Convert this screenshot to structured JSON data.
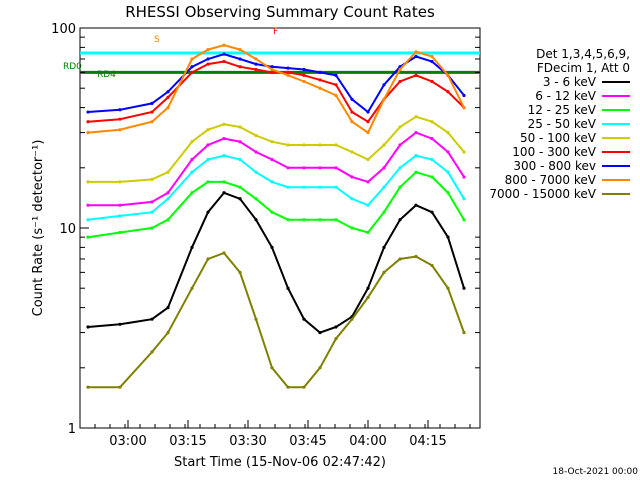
{
  "chart_data": {
    "type": "line",
    "title": "RHESSI Observing Summary Count Rates",
    "xlabel": "Start Time (15-Nov-06 02:47:42)",
    "ylabel": "Count Rate (s⁻¹ detector⁻¹)",
    "yscale": "log",
    "ylim": [
      1,
      100
    ],
    "xlim_minutes": [
      0,
      100
    ],
    "x_ticks": [
      "03:00",
      "03:15",
      "03:30",
      "03:45",
      "04:00",
      "04:15"
    ],
    "y_ticks": [
      "1",
      "10",
      "100"
    ],
    "legend_header": [
      "Det 1,3,4,5,6,9,",
      "FDecim 1, Att 0"
    ],
    "series": [
      {
        "name": "3 - 6 keV",
        "color": "#000000",
        "points": [
          [
            2,
            3.2
          ],
          [
            10,
            3.3
          ],
          [
            18,
            3.5
          ],
          [
            22,
            4
          ],
          [
            28,
            8
          ],
          [
            32,
            12
          ],
          [
            36,
            15
          ],
          [
            40,
            14
          ],
          [
            44,
            11
          ],
          [
            48,
            8
          ],
          [
            52,
            5
          ],
          [
            56,
            3.5
          ],
          [
            60,
            3
          ],
          [
            64,
            3.2
          ],
          [
            68,
            3.6
          ],
          [
            72,
            5
          ],
          [
            76,
            8
          ],
          [
            80,
            11
          ],
          [
            84,
            13
          ],
          [
            88,
            12
          ],
          [
            92,
            9
          ],
          [
            96,
            5
          ]
        ]
      },
      {
        "name": "6 - 12 keV",
        "color": "#ff00ff",
        "points": [
          [
            2,
            13
          ],
          [
            10,
            13
          ],
          [
            18,
            13.5
          ],
          [
            22,
            15
          ],
          [
            28,
            22
          ],
          [
            32,
            26
          ],
          [
            36,
            28
          ],
          [
            40,
            27
          ],
          [
            44,
            24
          ],
          [
            48,
            22
          ],
          [
            52,
            20
          ],
          [
            56,
            20
          ],
          [
            60,
            20
          ],
          [
            64,
            20
          ],
          [
            68,
            18
          ],
          [
            72,
            17
          ],
          [
            76,
            20
          ],
          [
            80,
            26
          ],
          [
            84,
            30
          ],
          [
            88,
            28
          ],
          [
            92,
            24
          ],
          [
            96,
            18
          ]
        ]
      },
      {
        "name": "12 - 25 keV",
        "color": "#00ff00",
        "points": [
          [
            2,
            9
          ],
          [
            10,
            9.5
          ],
          [
            18,
            10
          ],
          [
            22,
            11
          ],
          [
            28,
            15
          ],
          [
            32,
            17
          ],
          [
            36,
            17
          ],
          [
            40,
            16
          ],
          [
            44,
            14
          ],
          [
            48,
            12
          ],
          [
            52,
            11
          ],
          [
            56,
            11
          ],
          [
            60,
            11
          ],
          [
            64,
            11
          ],
          [
            68,
            10
          ],
          [
            72,
            9.5
          ],
          [
            76,
            12
          ],
          [
            80,
            16
          ],
          [
            84,
            19
          ],
          [
            88,
            18
          ],
          [
            92,
            15
          ],
          [
            96,
            11
          ]
        ]
      },
      {
        "name": "25 - 50 keV",
        "color": "#00ffff",
        "points": [
          [
            2,
            11
          ],
          [
            10,
            11.5
          ],
          [
            18,
            12
          ],
          [
            22,
            14
          ],
          [
            28,
            19
          ],
          [
            32,
            22
          ],
          [
            36,
            23
          ],
          [
            40,
            22
          ],
          [
            44,
            19
          ],
          [
            48,
            17
          ],
          [
            52,
            16
          ],
          [
            56,
            16
          ],
          [
            60,
            16
          ],
          [
            64,
            16
          ],
          [
            68,
            14
          ],
          [
            72,
            13
          ],
          [
            76,
            16
          ],
          [
            80,
            20
          ],
          [
            84,
            23
          ],
          [
            88,
            22
          ],
          [
            92,
            19
          ],
          [
            96,
            14
          ]
        ]
      },
      {
        "name": "50 - 100 keV",
        "color": "#cccc00",
        "points": [
          [
            2,
            17
          ],
          [
            10,
            17
          ],
          [
            18,
            17.5
          ],
          [
            22,
            19
          ],
          [
            28,
            27
          ],
          [
            32,
            31
          ],
          [
            36,
            33
          ],
          [
            40,
            32
          ],
          [
            44,
            29
          ],
          [
            48,
            27
          ],
          [
            52,
            26
          ],
          [
            56,
            26
          ],
          [
            60,
            26
          ],
          [
            64,
            26
          ],
          [
            68,
            24
          ],
          [
            72,
            22
          ],
          [
            76,
            26
          ],
          [
            80,
            32
          ],
          [
            84,
            36
          ],
          [
            88,
            34
          ],
          [
            92,
            30
          ],
          [
            96,
            24
          ]
        ]
      },
      {
        "name": "100 - 300 keV",
        "color": "#ff0000",
        "points": [
          [
            2,
            34
          ],
          [
            10,
            35
          ],
          [
            18,
            38
          ],
          [
            22,
            45
          ],
          [
            28,
            60
          ],
          [
            32,
            66
          ],
          [
            36,
            68
          ],
          [
            40,
            64
          ],
          [
            44,
            62
          ],
          [
            48,
            60
          ],
          [
            52,
            60
          ],
          [
            56,
            58
          ],
          [
            60,
            55
          ],
          [
            64,
            52
          ],
          [
            68,
            38
          ],
          [
            72,
            34
          ],
          [
            76,
            44
          ],
          [
            80,
            54
          ],
          [
            84,
            58
          ],
          [
            88,
            54
          ],
          [
            92,
            48
          ],
          [
            96,
            40
          ]
        ]
      },
      {
        "name": "300 - 800 kev",
        "color": "#0000ff",
        "points": [
          [
            2,
            38
          ],
          [
            10,
            39
          ],
          [
            18,
            42
          ],
          [
            22,
            48
          ],
          [
            28,
            64
          ],
          [
            32,
            70
          ],
          [
            36,
            74
          ],
          [
            40,
            70
          ],
          [
            44,
            66
          ],
          [
            48,
            64
          ],
          [
            52,
            63
          ],
          [
            56,
            62
          ],
          [
            60,
            60
          ],
          [
            64,
            58
          ],
          [
            68,
            44
          ],
          [
            72,
            38
          ],
          [
            76,
            52
          ],
          [
            80,
            64
          ],
          [
            84,
            72
          ],
          [
            88,
            68
          ],
          [
            92,
            58
          ],
          [
            96,
            46
          ]
        ]
      },
      {
        "name": "800 - 7000 keV",
        "color": "#ff8800",
        "points": [
          [
            2,
            30
          ],
          [
            10,
            31
          ],
          [
            18,
            34
          ],
          [
            22,
            40
          ],
          [
            28,
            70
          ],
          [
            32,
            78
          ],
          [
            36,
            82
          ],
          [
            40,
            78
          ],
          [
            44,
            70
          ],
          [
            48,
            62
          ],
          [
            52,
            58
          ],
          [
            56,
            54
          ],
          [
            60,
            50
          ],
          [
            64,
            46
          ],
          [
            68,
            34
          ],
          [
            72,
            30
          ],
          [
            76,
            44
          ],
          [
            80,
            62
          ],
          [
            84,
            76
          ],
          [
            88,
            72
          ],
          [
            92,
            58
          ],
          [
            96,
            40
          ]
        ]
      },
      {
        "name": "7000 - 15000 keV",
        "color": "#808000",
        "points": [
          [
            2,
            1.6
          ],
          [
            10,
            1.6
          ],
          [
            18,
            2.4
          ],
          [
            22,
            3
          ],
          [
            28,
            5
          ],
          [
            32,
            7
          ],
          [
            36,
            7.5
          ],
          [
            40,
            6
          ],
          [
            44,
            3.5
          ],
          [
            48,
            2
          ],
          [
            52,
            1.6
          ],
          [
            56,
            1.6
          ],
          [
            60,
            2
          ],
          [
            64,
            2.8
          ],
          [
            68,
            3.5
          ],
          [
            72,
            4.5
          ],
          [
            76,
            6
          ],
          [
            80,
            7
          ],
          [
            84,
            7.2
          ],
          [
            88,
            6.5
          ],
          [
            92,
            5
          ],
          [
            96,
            3
          ]
        ]
      }
    ],
    "annotations": [
      {
        "text": "RD0",
        "color": "#008000"
      },
      {
        "text": "RD4",
        "color": "#008000"
      },
      {
        "text": "S",
        "color": "#ff8800"
      },
      {
        "text": "F",
        "color": "#ff0000"
      }
    ],
    "flag_lines": [
      {
        "name": "RD0",
        "color": "#008000",
        "value": 60
      },
      {
        "name": "saa",
        "color": "#00ffff",
        "value": 75
      }
    ],
    "grid": false,
    "legend_position": "right"
  },
  "footer": {
    "date": "18-Oct-2021 00:00"
  }
}
